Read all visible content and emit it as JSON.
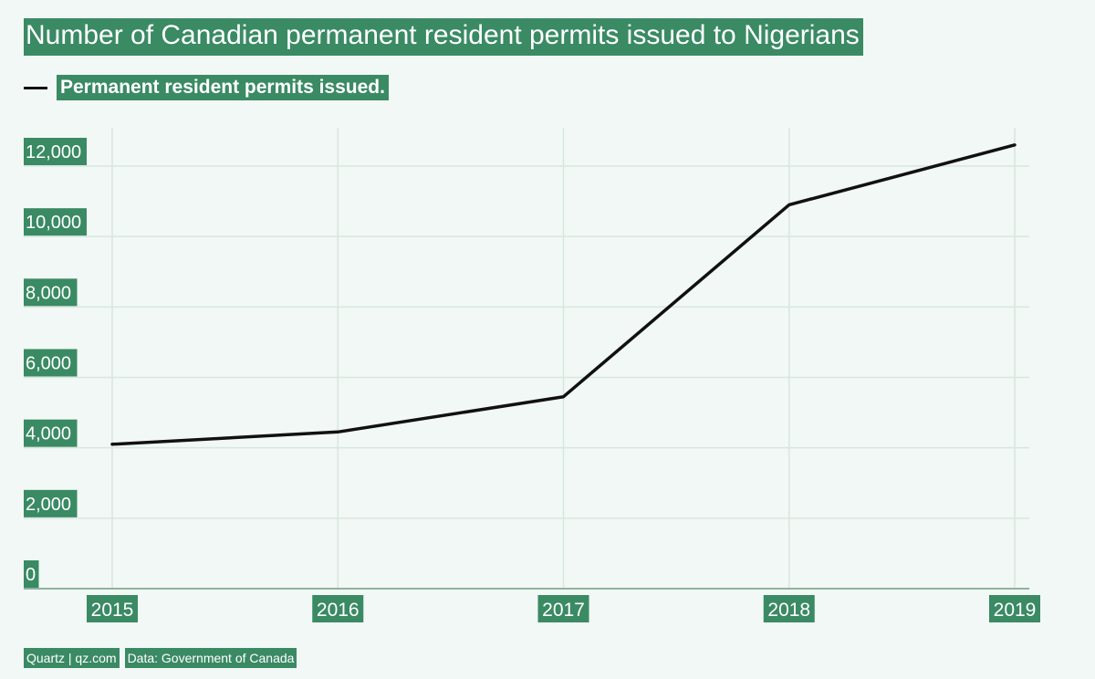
{
  "title": "Number of Canadian permanent resident permits issued to Nigerians",
  "legend": {
    "label": "Permanent resident permits issued."
  },
  "footer": {
    "source_brand": "Quartz | qz.com",
    "source_data": "Data: Government of Canada"
  },
  "colors": {
    "highlight": "#3a8a64",
    "line": "#111111",
    "grid": "#d8e6df",
    "axis": "#8fb3a1",
    "background": "#f2f8f5"
  },
  "chart_data": {
    "type": "line",
    "title": "Number of Canadian permanent resident permits issued to Nigerians",
    "xlabel": "",
    "ylabel": "",
    "categories": [
      "2015",
      "2016",
      "2017",
      "2018",
      "2019"
    ],
    "series": [
      {
        "name": "Permanent resident permits issued.",
        "values": [
          4100,
          4450,
          5450,
          10900,
          12600
        ]
      }
    ],
    "ylim": [
      0,
      13000
    ],
    "yticks": [
      0,
      2000,
      4000,
      6000,
      8000,
      10000,
      12000
    ],
    "ytick_labels": [
      "0",
      "2,000",
      "4,000",
      "6,000",
      "8,000",
      "10,000",
      "12,000"
    ],
    "grid": true,
    "legend_position": "top-left"
  }
}
